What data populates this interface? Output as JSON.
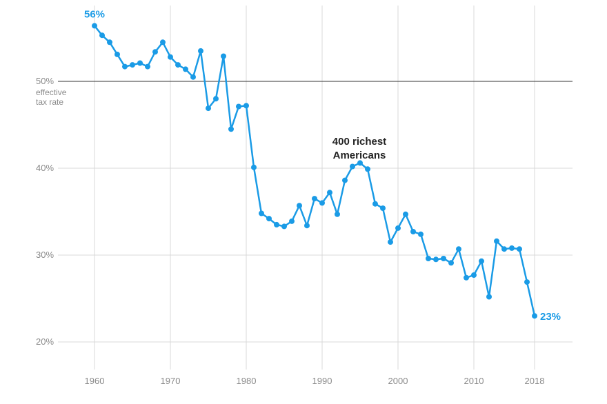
{
  "chart_data": {
    "type": "line",
    "title": "",
    "xlabel": "",
    "ylabel": "",
    "ylim": [
      20,
      56.5
    ],
    "xlim": [
      1956,
      2020
    ],
    "y_ticks": [
      20,
      30,
      40,
      50
    ],
    "y_tick_labels": [
      "20%",
      "30%",
      "40%",
      "50%"
    ],
    "x_ticks": [
      1960,
      1970,
      1980,
      1990,
      2000,
      2010,
      2018
    ],
    "x_tick_labels": [
      "1960",
      "1970",
      "1980",
      "1990",
      "2000",
      "2010",
      "2018"
    ],
    "reference_line": {
      "y": 50,
      "note_lines": [
        "effective",
        "tax rate"
      ]
    },
    "grid": true,
    "colors": {
      "line": "#1a9be6",
      "grid": "#d9d9d9",
      "reference": "#333333",
      "tick_text": "#8a8a8a"
    },
    "series": [
      {
        "name": "400 richest Americans",
        "label_lines": [
          "400 richest",
          "Americans"
        ],
        "x": [
          1960,
          1961,
          1962,
          1963,
          1964,
          1965,
          1966,
          1967,
          1968,
          1969,
          1970,
          1971,
          1972,
          1973,
          1974,
          1975,
          1976,
          1977,
          1978,
          1979,
          1980,
          1981,
          1982,
          1983,
          1984,
          1985,
          1986,
          1987,
          1988,
          1989,
          1990,
          1991,
          1992,
          1993,
          1994,
          1995,
          1996,
          1997,
          1998,
          1999,
          2000,
          2001,
          2002,
          2003,
          2004,
          2005,
          2006,
          2007,
          2008,
          2009,
          2010,
          2011,
          2012,
          2013,
          2014,
          2015,
          2016,
          2017,
          2018
        ],
        "y": [
          56.4,
          55.3,
          54.5,
          53.1,
          51.7,
          51.9,
          52.1,
          51.7,
          53.4,
          54.5,
          52.8,
          51.9,
          51.4,
          50.5,
          53.5,
          46.9,
          48.0,
          52.9,
          44.5,
          47.1,
          47.2,
          40.1,
          34.8,
          34.2,
          33.5,
          33.3,
          33.9,
          35.7,
          33.4,
          36.5,
          36.0,
          37.2,
          34.7,
          38.6,
          40.2,
          40.6,
          39.9,
          35.9,
          35.4,
          31.5,
          33.1,
          34.7,
          32.7,
          32.4,
          29.6,
          29.5,
          29.6,
          29.1,
          30.7,
          27.4,
          27.7,
          29.3,
          25.2,
          31.6,
          30.7,
          30.8,
          30.7,
          26.9,
          23.0
        ]
      }
    ],
    "annotations": [
      {
        "text": "56%",
        "x": 1960,
        "y": 56.4
      },
      {
        "text": "23%",
        "x": 2018,
        "y": 23.0
      }
    ]
  }
}
